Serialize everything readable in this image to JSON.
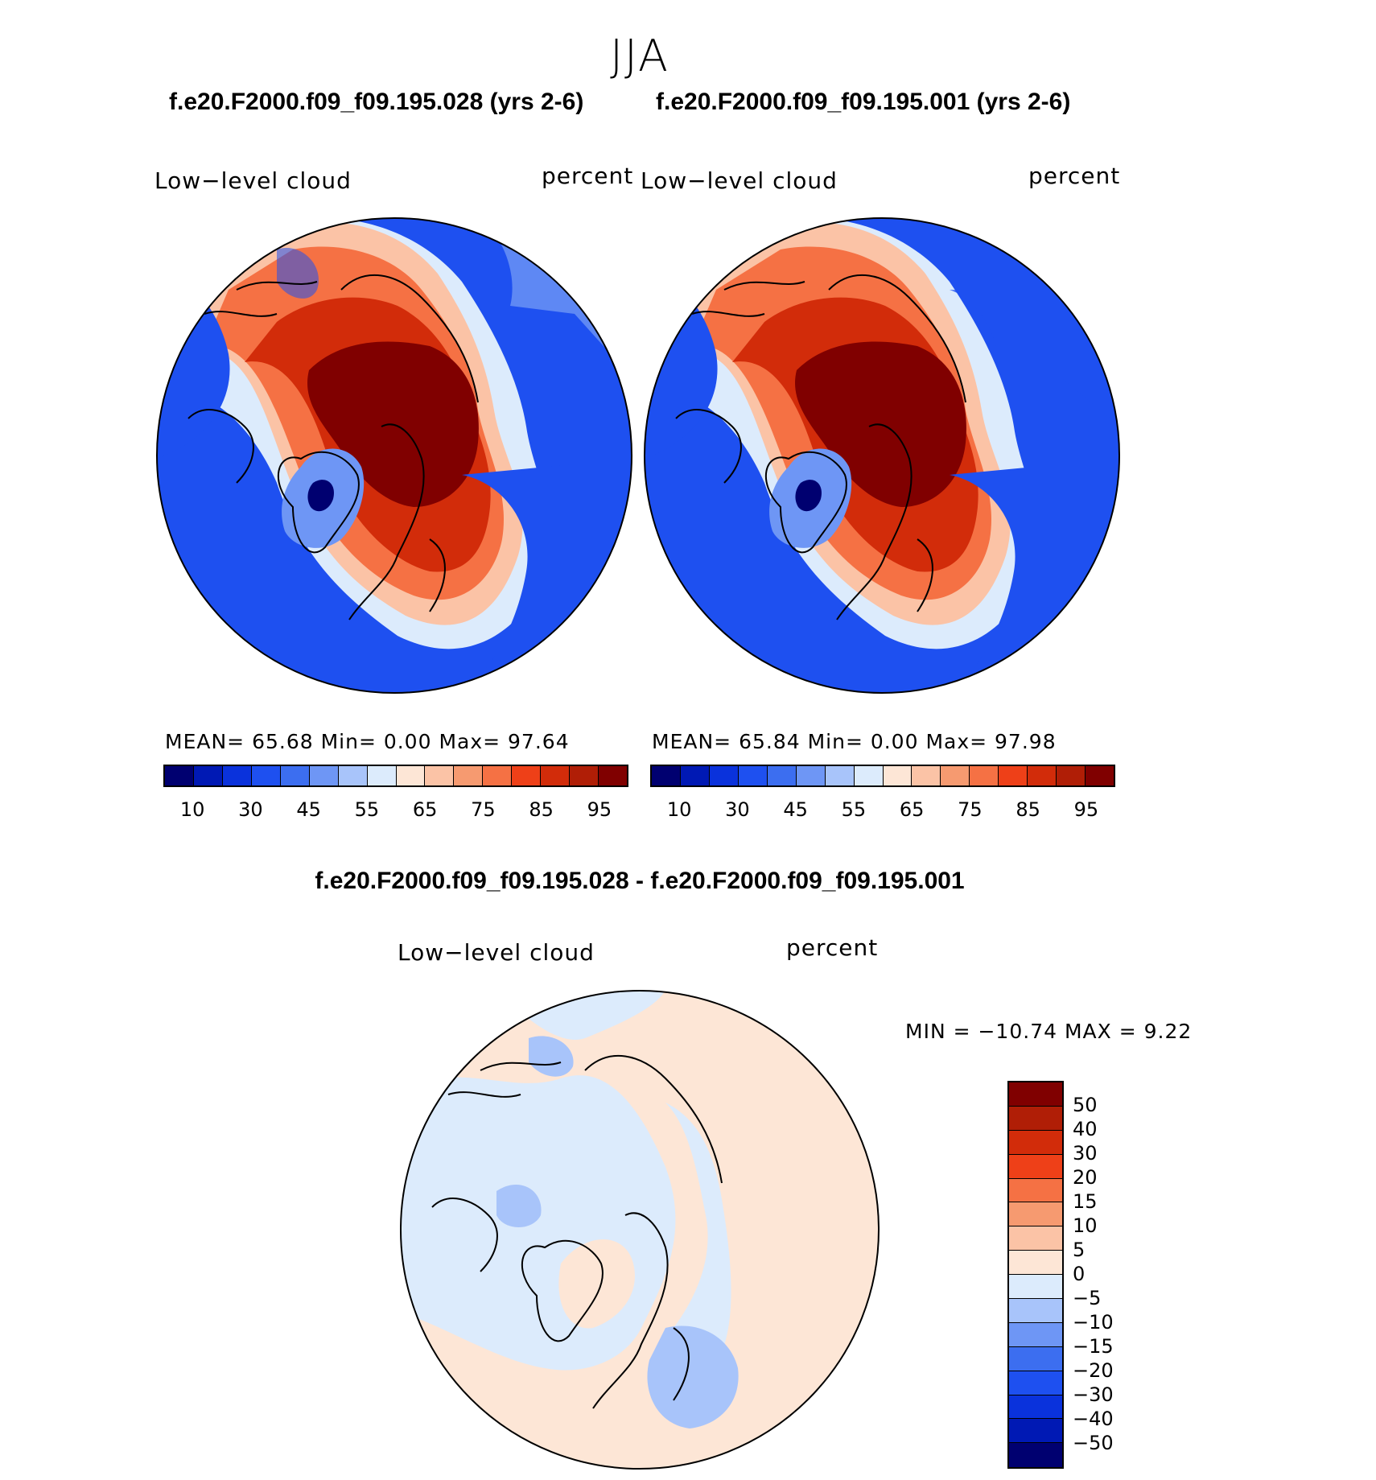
{
  "figure": {
    "season": "JJA",
    "left_case_title": "f.e20.F2000.f09_f09.195.028 (yrs 2-6)",
    "right_case_title": "f.e20.F2000.f09_f09.195.001 (yrs 2-6)",
    "diff_title": "f.e20.F2000.f09_f09.195.028 - f.e20.F2000.f09_f09.195.001"
  },
  "panels": {
    "left": {
      "variable": "Low−level cloud",
      "units": "percent",
      "stats": "MEAN=   65.68   Min=     0.00   Max=   97.64"
    },
    "right": {
      "variable": "Low−level cloud",
      "units": "percent",
      "stats": "MEAN=   65.84   Min=     0.00   Max=   97.98"
    },
    "diff": {
      "variable": "Low−level cloud",
      "units": "percent",
      "stats": "MIN  =  −10.74  MAX  =     9.22"
    }
  },
  "colorbars": {
    "abs": {
      "colors": [
        "#000070",
        "#0019b4",
        "#0a32dc",
        "#1e50f0",
        "#3c6ef0",
        "#6e96f5",
        "#a8c4fa",
        "#dcebfc",
        "#fde6d6",
        "#fbc3a6",
        "#f69a70",
        "#f57144",
        "#ee4018",
        "#d22c0a",
        "#b01e06",
        "#800000"
      ],
      "tick_labels": [
        "10",
        "30",
        "45",
        "55",
        "65",
        "75",
        "85",
        "95"
      ]
    },
    "diff": {
      "colors": [
        "#800000",
        "#b01e06",
        "#d22c0a",
        "#ee4018",
        "#f57144",
        "#f69a70",
        "#fbc3a6",
        "#fde6d6",
        "#dcebfc",
        "#a8c4fa",
        "#6e96f5",
        "#3c6ef0",
        "#1e50f0",
        "#0a32dc",
        "#0019b4",
        "#000070"
      ],
      "tick_labels": [
        "50",
        "40",
        "30",
        "20",
        "15",
        "10",
        "5",
        "0",
        "−5",
        "−10",
        "−15",
        "−20",
        "−30",
        "−40",
        "−50"
      ]
    }
  },
  "map_colors": {
    "deep_red": "#800000",
    "red": "#d22c0a",
    "orange": "#f57144",
    "salmon": "#fbc3a6",
    "light_blue": "#dcebfc",
    "mid_blue": "#6e96f5",
    "blue": "#1e50f0",
    "navy": "#000070",
    "diff_pos": "#fde6d6",
    "diff_neg": "#dcebfc",
    "diff_neg2": "#a8c4fa"
  }
}
